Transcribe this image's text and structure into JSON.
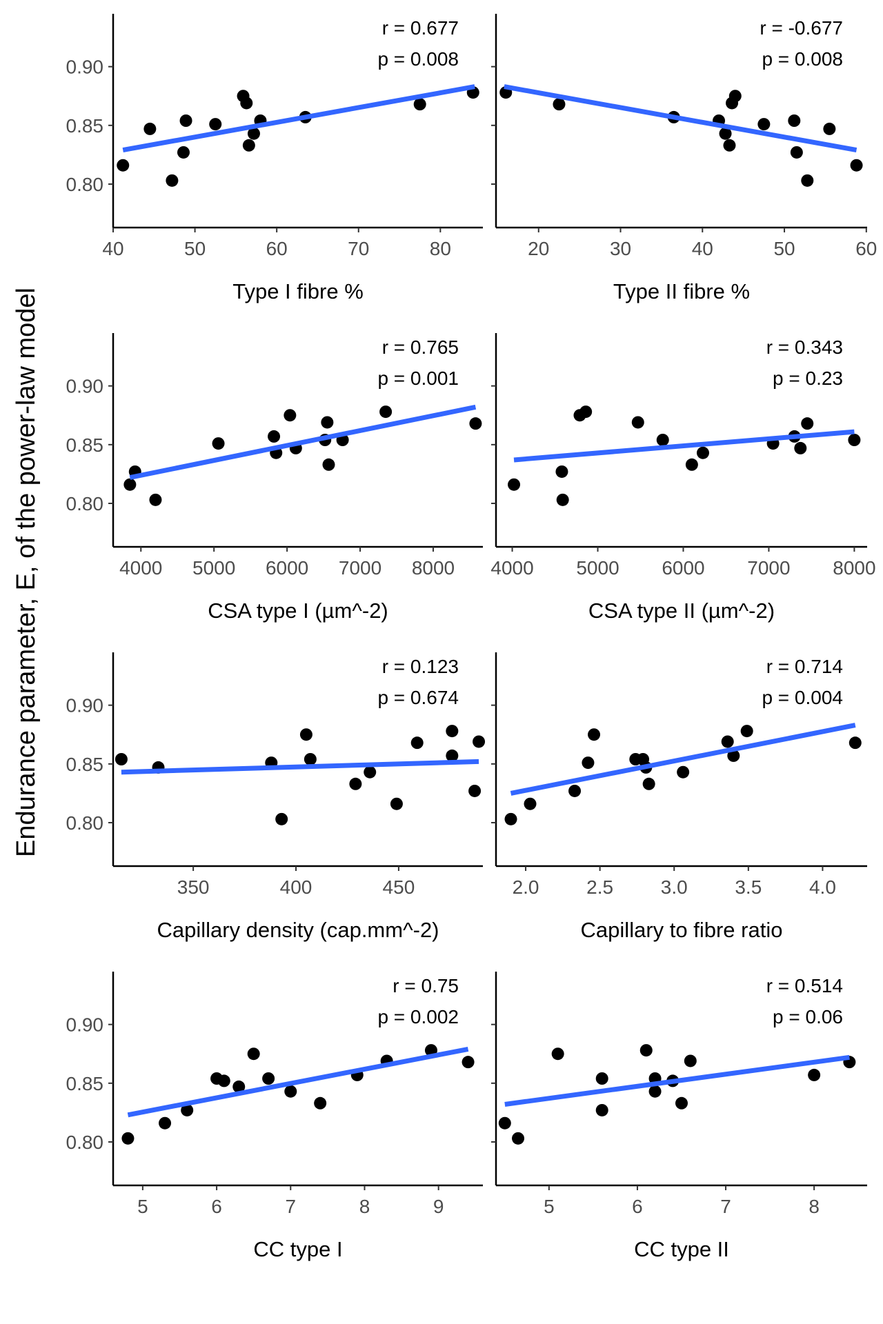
{
  "chart_data": {
    "type": "scatter",
    "shared_ylabel": "Endurance parameter, E, of the power-law model",
    "y_ticks": [
      0.8,
      0.85,
      0.9
    ],
    "y_tick_labels": [
      "0.80",
      "0.85",
      "0.90"
    ],
    "ylim": [
      0.763,
      0.945
    ],
    "trend_color": "#3366ff",
    "point_color": "#000000",
    "panels": [
      {
        "xlabel": "Type I fibre %",
        "xlim": [
          40,
          85.2
        ],
        "x_ticks": [
          40,
          50,
          60,
          70,
          80
        ],
        "x_tick_labels": [
          "40",
          "50",
          "60",
          "70",
          "80"
        ],
        "r_text": "r = 0.677",
        "p_text": "p = 0.008",
        "trend": [
          [
            41.2,
            0.829
          ],
          [
            84.2,
            0.883
          ]
        ],
        "points": [
          [
            41.2,
            0.816
          ],
          [
            44.5,
            0.847
          ],
          [
            47.2,
            0.803
          ],
          [
            48.6,
            0.827
          ],
          [
            48.9,
            0.854
          ],
          [
            52.5,
            0.851
          ],
          [
            55.9,
            0.875
          ],
          [
            56.3,
            0.869
          ],
          [
            56.6,
            0.833
          ],
          [
            57.2,
            0.843
          ],
          [
            58.0,
            0.854
          ],
          [
            63.5,
            0.857
          ],
          [
            77.5,
            0.868
          ],
          [
            84.0,
            0.878
          ]
        ]
      },
      {
        "xlabel": "Type II fibre %",
        "xlim": [
          14.8,
          60.1
        ],
        "x_ticks": [
          20,
          30,
          40,
          50,
          60
        ],
        "x_tick_labels": [
          "20",
          "30",
          "40",
          "50",
          "60"
        ],
        "r_text": "r = -0.677",
        "p_text": "p = 0.008",
        "trend": [
          [
            15.8,
            0.883
          ],
          [
            58.8,
            0.829
          ]
        ],
        "points": [
          [
            16.0,
            0.878
          ],
          [
            22.5,
            0.868
          ],
          [
            36.5,
            0.857
          ],
          [
            42.0,
            0.854
          ],
          [
            42.8,
            0.843
          ],
          [
            43.3,
            0.833
          ],
          [
            43.6,
            0.869
          ],
          [
            44.0,
            0.875
          ],
          [
            47.5,
            0.851
          ],
          [
            51.2,
            0.854
          ],
          [
            51.5,
            0.827
          ],
          [
            52.8,
            0.803
          ],
          [
            55.5,
            0.847
          ],
          [
            58.8,
            0.816
          ]
        ]
      },
      {
        "xlabel": "CSA type I (µm^-2)",
        "xlim": [
          3620,
          8680
        ],
        "x_ticks": [
          4000,
          5000,
          6000,
          7000,
          8000
        ],
        "x_tick_labels": [
          "4000",
          "5000",
          "6000",
          "7000",
          "8000"
        ],
        "r_text": "r = 0.765",
        "p_text": "p = 0.001",
        "trend": [
          [
            3850,
            0.822
          ],
          [
            8580,
            0.882
          ]
        ],
        "points": [
          [
            3850,
            0.816
          ],
          [
            3920,
            0.827
          ],
          [
            4200,
            0.803
          ],
          [
            5060,
            0.851
          ],
          [
            5820,
            0.857
          ],
          [
            5850,
            0.843
          ],
          [
            6040,
            0.875
          ],
          [
            6120,
            0.847
          ],
          [
            6520,
            0.854
          ],
          [
            6550,
            0.869
          ],
          [
            6570,
            0.833
          ],
          [
            6760,
            0.854
          ],
          [
            7350,
            0.878
          ],
          [
            8580,
            0.868
          ]
        ]
      },
      {
        "xlabel": "CSA type II (µm^-2)",
        "xlim": [
          3810,
          8150
        ],
        "x_ticks": [
          4000,
          5000,
          6000,
          7000,
          8000
        ],
        "x_tick_labels": [
          "4000",
          "5000",
          "6000",
          "7000",
          "8000"
        ],
        "r_text": "r = 0.343",
        "p_text": "p = 0.23",
        "trend": [
          [
            4020,
            0.837
          ],
          [
            8000,
            0.861
          ]
        ],
        "points": [
          [
            4020,
            0.816
          ],
          [
            4580,
            0.827
          ],
          [
            4590,
            0.803
          ],
          [
            4790,
            0.875
          ],
          [
            4860,
            0.878
          ],
          [
            5470,
            0.869
          ],
          [
            5760,
            0.854
          ],
          [
            6100,
            0.833
          ],
          [
            6230,
            0.843
          ],
          [
            7050,
            0.851
          ],
          [
            7300,
            0.857
          ],
          [
            7370,
            0.847
          ],
          [
            7450,
            0.868
          ],
          [
            8000,
            0.854
          ]
        ]
      },
      {
        "xlabel": "Capillary density (cap.mm^-2)",
        "xlim": [
          311,
          491
        ],
        "x_ticks": [
          350,
          400,
          450
        ],
        "x_tick_labels": [
          "350",
          "400",
          "450"
        ],
        "r_text": "r = 0.123",
        "p_text": "p = 0.674",
        "trend": [
          [
            315,
            0.843
          ],
          [
            489,
            0.852
          ]
        ],
        "points": [
          [
            315,
            0.854
          ],
          [
            333,
            0.847
          ],
          [
            388,
            0.851
          ],
          [
            393,
            0.803
          ],
          [
            405,
            0.875
          ],
          [
            407,
            0.854
          ],
          [
            429,
            0.833
          ],
          [
            436,
            0.843
          ],
          [
            449,
            0.816
          ],
          [
            459,
            0.868
          ],
          [
            476,
            0.878
          ],
          [
            476,
            0.857
          ],
          [
            487,
            0.827
          ],
          [
            489,
            0.869
          ]
        ]
      },
      {
        "xlabel": "Capillary to fibre ratio",
        "xlim": [
          1.8,
          4.3
        ],
        "x_ticks": [
          2.0,
          2.5,
          3.0,
          3.5,
          4.0
        ],
        "x_tick_labels": [
          "2.0",
          "2.5",
          "3.0",
          "3.5",
          "4.0"
        ],
        "r_text": "r = 0.714",
        "p_text": "p = 0.004",
        "trend": [
          [
            1.9,
            0.825
          ],
          [
            4.22,
            0.883
          ]
        ],
        "points": [
          [
            1.9,
            0.803
          ],
          [
            2.03,
            0.816
          ],
          [
            2.33,
            0.827
          ],
          [
            2.42,
            0.851
          ],
          [
            2.46,
            0.875
          ],
          [
            2.74,
            0.854
          ],
          [
            2.79,
            0.854
          ],
          [
            2.81,
            0.847
          ],
          [
            2.83,
            0.833
          ],
          [
            3.06,
            0.843
          ],
          [
            3.36,
            0.869
          ],
          [
            3.4,
            0.857
          ],
          [
            3.49,
            0.878
          ],
          [
            4.22,
            0.868
          ]
        ]
      },
      {
        "xlabel": "CC type I",
        "xlim": [
          4.6,
          9.6
        ],
        "x_ticks": [
          5,
          6,
          7,
          8,
          9
        ],
        "x_tick_labels": [
          "5",
          "6",
          "7",
          "8",
          "9"
        ],
        "r_text": "r = 0.75",
        "p_text": "p = 0.002",
        "trend": [
          [
            4.8,
            0.823
          ],
          [
            9.4,
            0.879
          ]
        ],
        "points": [
          [
            4.8,
            0.803
          ],
          [
            5.3,
            0.816
          ],
          [
            5.6,
            0.827
          ],
          [
            6.0,
            0.854
          ],
          [
            6.1,
            0.852
          ],
          [
            6.3,
            0.847
          ],
          [
            6.5,
            0.875
          ],
          [
            6.7,
            0.854
          ],
          [
            7.0,
            0.843
          ],
          [
            7.4,
            0.833
          ],
          [
            7.9,
            0.857
          ],
          [
            8.3,
            0.869
          ],
          [
            8.9,
            0.878
          ],
          [
            9.4,
            0.868
          ]
        ]
      },
      {
        "xlabel": "CC type II",
        "xlim": [
          4.4,
          8.6
        ],
        "x_ticks": [
          5,
          6,
          7,
          8
        ],
        "x_tick_labels": [
          "5",
          "6",
          "7",
          "8"
        ],
        "r_text": "r = 0.514",
        "p_text": "p = 0.06",
        "trend": [
          [
            4.5,
            0.832
          ],
          [
            8.4,
            0.872
          ]
        ],
        "points": [
          [
            4.5,
            0.816
          ],
          [
            4.65,
            0.803
          ],
          [
            5.1,
            0.875
          ],
          [
            5.6,
            0.854
          ],
          [
            5.6,
            0.827
          ],
          [
            6.1,
            0.878
          ],
          [
            6.2,
            0.854
          ],
          [
            6.2,
            0.843
          ],
          [
            6.4,
            0.852
          ],
          [
            6.5,
            0.833
          ],
          [
            6.6,
            0.869
          ],
          [
            8.0,
            0.857
          ],
          [
            8.4,
            0.868
          ]
        ]
      }
    ]
  }
}
